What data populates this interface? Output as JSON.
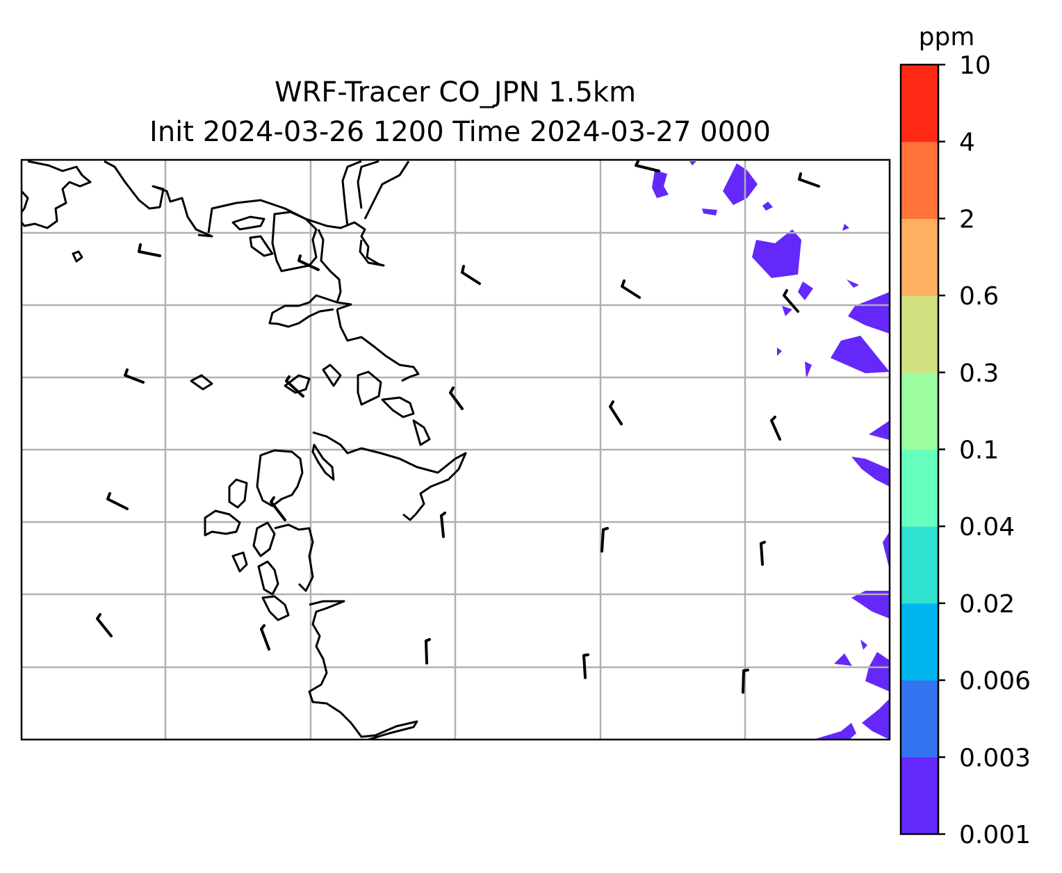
{
  "title_line1": "WRF-Tracer CO_JPN 1.5km",
  "title_line2": "Init 2024-03-26 1200 Time 2024-03-27 0000",
  "colorbar": {
    "unit": "ppm",
    "levels": [
      "0.001",
      "0.003",
      "0.006",
      "0.02",
      "0.04",
      "0.1",
      "0.3",
      "0.6",
      "2",
      "4",
      "10"
    ],
    "colors": [
      "#6428fa",
      "#3473f0",
      "#00b4ee",
      "#30e0d0",
      "#66ffbe",
      "#9cfca0",
      "#d2e080",
      "#fdb062",
      "#ff733b",
      "#ff2a16"
    ]
  },
  "chart_data": {
    "type": "heatmap",
    "title": "WRF-Tracer CO_JPN 1.5km\nInit 2024-03-26 1200 Time 2024-03-27 0000",
    "unit": "ppm",
    "contour_levels": [
      0.001,
      0.003,
      0.006,
      0.02,
      0.04,
      0.1,
      0.3,
      0.6,
      2,
      4,
      10
    ],
    "visible_band": "0.001-0.003 ppm (eastern edge of domain)",
    "grid": true,
    "overlays": [
      "coastlines",
      "wind barbs"
    ]
  }
}
